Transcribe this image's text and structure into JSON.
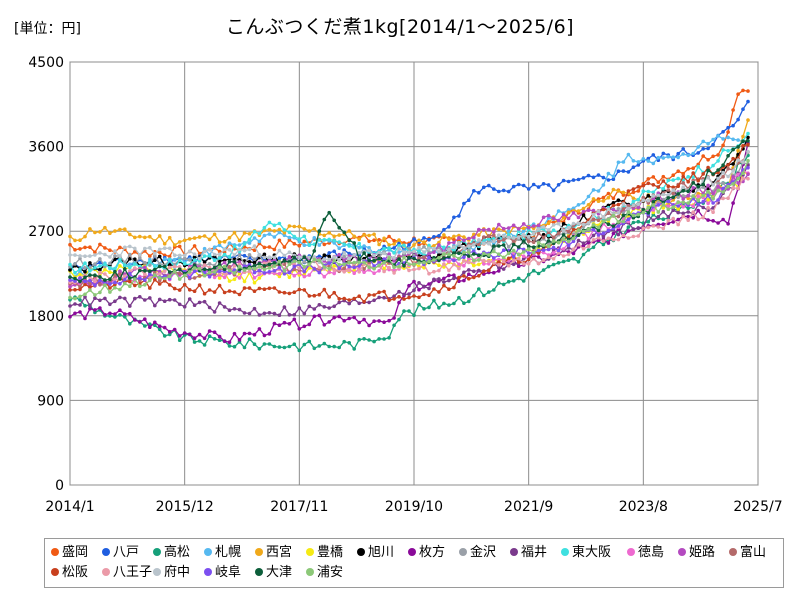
{
  "unit_label": "[単位：円]",
  "chart_data": {
    "type": "line",
    "title": "こんぶつくだ煮1kg[2014/1～2025/6]",
    "xlabel": "",
    "ylabel": "円",
    "ylim": [
      0,
      4500
    ],
    "yticks": [
      0,
      900,
      1800,
      2700,
      3600,
      4500
    ],
    "x_range": [
      0,
      138
    ],
    "x_ticks": [
      {
        "label": "2014/1",
        "x": 0
      },
      {
        "label": "2015/12",
        "x": 23
      },
      {
        "label": "2017/11",
        "x": 46
      },
      {
        "label": "2019/10",
        "x": 69
      },
      {
        "label": "2021/9",
        "x": 92
      },
      {
        "label": "2023/8",
        "x": 115
      },
      {
        "label": "2025/7",
        "x": 138
      }
    ],
    "grid": true,
    "legend_position": "bottom",
    "x_unit": "months since 2014/1",
    "series": [
      {
        "name": "盛岡",
        "color": "#f05a14",
        "points": [
          [
            0,
            2550
          ],
          [
            15,
            2470
          ],
          [
            28,
            2500
          ],
          [
            43,
            2560
          ],
          [
            55,
            2620
          ],
          [
            68,
            2600
          ],
          [
            80,
            2580
          ],
          [
            92,
            2650
          ],
          [
            105,
            3000
          ],
          [
            115,
            3200
          ],
          [
            125,
            3400
          ],
          [
            131,
            3600
          ],
          [
            134,
            4200
          ],
          [
            136,
            4200
          ]
        ]
      },
      {
        "name": "八戸",
        "color": "#1f5ee0",
        "points": [
          [
            0,
            2300
          ],
          [
            15,
            2400
          ],
          [
            30,
            2400
          ],
          [
            45,
            2400
          ],
          [
            60,
            2480
          ],
          [
            72,
            2600
          ],
          [
            78,
            2900
          ],
          [
            82,
            3150
          ],
          [
            95,
            3150
          ],
          [
            110,
            3300
          ],
          [
            115,
            3450
          ],
          [
            126,
            3550
          ],
          [
            133,
            3800
          ],
          [
            136,
            4050
          ]
        ]
      },
      {
        "name": "高松",
        "color": "#16a07a",
        "points": [
          [
            0,
            2000
          ],
          [
            6,
            1850
          ],
          [
            14,
            1700
          ],
          [
            24,
            1550
          ],
          [
            35,
            1500
          ],
          [
            48,
            1480
          ],
          [
            58,
            1500
          ],
          [
            64,
            1620
          ],
          [
            66,
            1800
          ],
          [
            72,
            1900
          ],
          [
            80,
            2000
          ],
          [
            90,
            2200
          ],
          [
            102,
            2400
          ],
          [
            112,
            2750
          ],
          [
            122,
            2900
          ],
          [
            132,
            3200
          ],
          [
            136,
            3550
          ]
        ]
      },
      {
        "name": "札幌",
        "color": "#56b9f0",
        "points": [
          [
            0,
            2200
          ],
          [
            10,
            2350
          ],
          [
            22,
            2400
          ],
          [
            40,
            2650
          ],
          [
            52,
            2550
          ],
          [
            66,
            2480
          ],
          [
            78,
            2500
          ],
          [
            90,
            2700
          ],
          [
            102,
            2950
          ],
          [
            112,
            3500
          ],
          [
            122,
            3450
          ],
          [
            130,
            3750
          ],
          [
            136,
            3650
          ]
        ]
      },
      {
        "name": "西宮",
        "color": "#f0a91b",
        "points": [
          [
            0,
            2600
          ],
          [
            5,
            2720
          ],
          [
            20,
            2600
          ],
          [
            35,
            2650
          ],
          [
            45,
            2720
          ],
          [
            58,
            2650
          ],
          [
            68,
            2550
          ],
          [
            80,
            2650
          ],
          [
            95,
            2750
          ],
          [
            108,
            3100
          ],
          [
            120,
            3000
          ],
          [
            132,
            3200
          ],
          [
            136,
            3850
          ]
        ]
      },
      {
        "name": "豊橋",
        "color": "#f5ea14",
        "points": [
          [
            0,
            2250
          ],
          [
            12,
            2300
          ],
          [
            25,
            2250
          ],
          [
            38,
            2200
          ],
          [
            50,
            2300
          ],
          [
            62,
            2350
          ],
          [
            75,
            2350
          ],
          [
            88,
            2400
          ],
          [
            100,
            2650
          ],
          [
            112,
            2900
          ],
          [
            124,
            3000
          ],
          [
            134,
            3200
          ],
          [
            136,
            3350
          ]
        ]
      },
      {
        "name": "旭川",
        "color": "#000000",
        "points": [
          [
            0,
            2280
          ],
          [
            10,
            2380
          ],
          [
            24,
            2380
          ],
          [
            38,
            2400
          ],
          [
            50,
            2420
          ],
          [
            60,
            2400
          ],
          [
            72,
            2420
          ],
          [
            84,
            2600
          ],
          [
            96,
            2650
          ],
          [
            108,
            2950
          ],
          [
            118,
            3100
          ],
          [
            128,
            3200
          ],
          [
            134,
            3500
          ],
          [
            136,
            3700
          ]
        ]
      },
      {
        "name": "枚方",
        "color": "#8a0a99",
        "points": [
          [
            0,
            1800
          ],
          [
            8,
            1850
          ],
          [
            20,
            1650
          ],
          [
            32,
            1550
          ],
          [
            44,
            1700
          ],
          [
            56,
            1800
          ],
          [
            64,
            1700
          ],
          [
            68,
            2100
          ],
          [
            78,
            2200
          ],
          [
            90,
            2350
          ],
          [
            102,
            2500
          ],
          [
            114,
            2750
          ],
          [
            126,
            2900
          ],
          [
            132,
            2800
          ],
          [
            136,
            3600
          ]
        ]
      },
      {
        "name": "金沢",
        "color": "#9aa0a8",
        "points": [
          [
            0,
            2350
          ],
          [
            12,
            2400
          ],
          [
            24,
            2380
          ],
          [
            36,
            2400
          ],
          [
            48,
            2350
          ],
          [
            60,
            2400
          ],
          [
            72,
            2500
          ],
          [
            84,
            2550
          ],
          [
            96,
            2600
          ],
          [
            108,
            2850
          ],
          [
            120,
            3050
          ],
          [
            132,
            3200
          ],
          [
            136,
            3450
          ]
        ]
      },
      {
        "name": "福井",
        "color": "#7a3a8c",
        "points": [
          [
            0,
            1950
          ],
          [
            10,
            1950
          ],
          [
            22,
            1950
          ],
          [
            34,
            1850
          ],
          [
            46,
            1850
          ],
          [
            58,
            1950
          ],
          [
            70,
            2100
          ],
          [
            82,
            2300
          ],
          [
            94,
            2400
          ],
          [
            106,
            2650
          ],
          [
            118,
            2850
          ],
          [
            130,
            3000
          ],
          [
            136,
            3400
          ]
        ]
      },
      {
        "name": "東大阪",
        "color": "#3fe0e0",
        "points": [
          [
            0,
            2300
          ],
          [
            10,
            2350
          ],
          [
            22,
            2350
          ],
          [
            34,
            2500
          ],
          [
            40,
            2800
          ],
          [
            48,
            2600
          ],
          [
            60,
            2500
          ],
          [
            72,
            2500
          ],
          [
            84,
            2600
          ],
          [
            96,
            2700
          ],
          [
            108,
            2900
          ],
          [
            118,
            3150
          ],
          [
            128,
            3400
          ],
          [
            136,
            3700
          ]
        ]
      },
      {
        "name": "徳島",
        "color": "#ee6ad0",
        "points": [
          [
            0,
            2100
          ],
          [
            12,
            2200
          ],
          [
            24,
            2250
          ],
          [
            36,
            2250
          ],
          [
            48,
            2250
          ],
          [
            60,
            2300
          ],
          [
            72,
            2350
          ],
          [
            84,
            2400
          ],
          [
            96,
            2500
          ],
          [
            108,
            2750
          ],
          [
            118,
            2950
          ],
          [
            128,
            3050
          ],
          [
            136,
            3350
          ]
        ]
      },
      {
        "name": "姫路",
        "color": "#b44ac0",
        "points": [
          [
            0,
            2100
          ],
          [
            12,
            2250
          ],
          [
            24,
            2300
          ],
          [
            36,
            2350
          ],
          [
            48,
            2400
          ],
          [
            60,
            2400
          ],
          [
            72,
            2450
          ],
          [
            82,
            2700
          ],
          [
            94,
            2800
          ],
          [
            106,
            2900
          ],
          [
            118,
            3050
          ],
          [
            130,
            3150
          ],
          [
            136,
            3300
          ]
        ]
      },
      {
        "name": "富山",
        "color": "#b46a6a",
        "points": [
          [
            0,
            2150
          ],
          [
            12,
            2200
          ],
          [
            24,
            2250
          ],
          [
            36,
            2300
          ],
          [
            48,
            2300
          ],
          [
            60,
            2350
          ],
          [
            72,
            2400
          ],
          [
            84,
            2600
          ],
          [
            96,
            2650
          ],
          [
            108,
            2850
          ],
          [
            118,
            3100
          ],
          [
            130,
            3250
          ],
          [
            136,
            3500
          ]
        ]
      },
      {
        "name": "松阪",
        "color": "#c8401e",
        "points": [
          [
            0,
            2100
          ],
          [
            12,
            2150
          ],
          [
            24,
            2100
          ],
          [
            36,
            2050
          ],
          [
            48,
            2050
          ],
          [
            60,
            2000
          ],
          [
            72,
            2050
          ],
          [
            84,
            2300
          ],
          [
            96,
            2500
          ],
          [
            106,
            2900
          ],
          [
            114,
            3150
          ],
          [
            124,
            3250
          ],
          [
            132,
            3400
          ],
          [
            136,
            3650
          ]
        ]
      },
      {
        "name": "八王子",
        "color": "#eb9aa8",
        "points": [
          [
            0,
            2200
          ],
          [
            12,
            2250
          ],
          [
            24,
            2300
          ],
          [
            36,
            2300
          ],
          [
            48,
            2350
          ],
          [
            60,
            2300
          ],
          [
            72,
            2300
          ],
          [
            84,
            2350
          ],
          [
            96,
            2400
          ],
          [
            106,
            2600
          ],
          [
            118,
            2750
          ],
          [
            128,
            2900
          ],
          [
            136,
            3250
          ]
        ]
      },
      {
        "name": "府中",
        "color": "#b9c4cc",
        "points": [
          [
            0,
            2400
          ],
          [
            12,
            2500
          ],
          [
            24,
            2450
          ],
          [
            36,
            2500
          ],
          [
            48,
            2400
          ],
          [
            60,
            2450
          ],
          [
            72,
            2480
          ],
          [
            84,
            2600
          ],
          [
            96,
            2700
          ],
          [
            108,
            2900
          ],
          [
            120,
            3100
          ],
          [
            130,
            3250
          ],
          [
            136,
            3500
          ]
        ]
      },
      {
        "name": "岐阜",
        "color": "#7c4ff0",
        "points": [
          [
            0,
            2150
          ],
          [
            12,
            2200
          ],
          [
            24,
            2250
          ],
          [
            36,
            2300
          ],
          [
            48,
            2300
          ],
          [
            60,
            2350
          ],
          [
            72,
            2400
          ],
          [
            84,
            2450
          ],
          [
            96,
            2500
          ],
          [
            108,
            2750
          ],
          [
            118,
            2950
          ],
          [
            130,
            3050
          ],
          [
            136,
            3400
          ]
        ]
      },
      {
        "name": "大津",
        "color": "#0c5e3a",
        "points": [
          [
            0,
            2200
          ],
          [
            12,
            2250
          ],
          [
            24,
            2300
          ],
          [
            36,
            2350
          ],
          [
            48,
            2400
          ],
          [
            52,
            2900
          ],
          [
            58,
            2450
          ],
          [
            70,
            2350
          ],
          [
            80,
            2450
          ],
          [
            92,
            2550
          ],
          [
            104,
            2700
          ],
          [
            116,
            2950
          ],
          [
            126,
            3200
          ],
          [
            132,
            3500
          ],
          [
            136,
            3650
          ]
        ]
      },
      {
        "name": "浦安",
        "color": "#8cc878",
        "points": [
          [
            0,
            2000
          ],
          [
            12,
            2150
          ],
          [
            24,
            2250
          ],
          [
            36,
            2300
          ],
          [
            48,
            2350
          ],
          [
            60,
            2350
          ],
          [
            72,
            2400
          ],
          [
            84,
            2450
          ],
          [
            96,
            2550
          ],
          [
            108,
            2800
          ],
          [
            118,
            2950
          ],
          [
            130,
            3100
          ],
          [
            136,
            3400
          ]
        ]
      }
    ]
  }
}
